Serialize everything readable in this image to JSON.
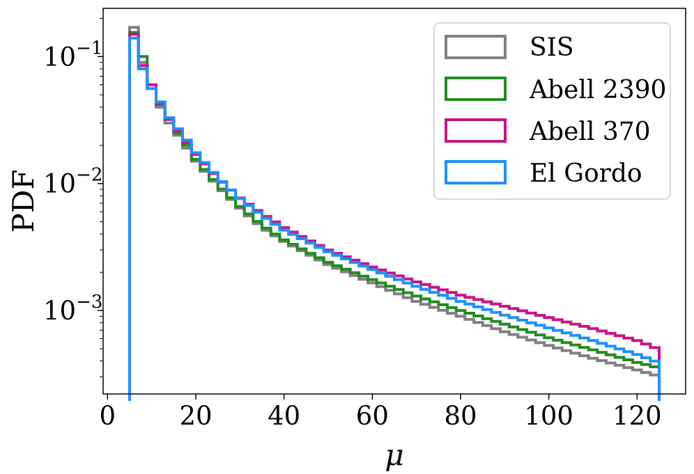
{
  "chart_data": {
    "type": "line",
    "subtype": "step-histogram",
    "title": "",
    "xlabel": "μ",
    "ylabel": "PDF",
    "xscale": "linear",
    "yscale": "log",
    "xlim": [
      -1,
      131
    ],
    "ylim": [
      0.00022,
      0.24
    ],
    "legend_position": "top-right",
    "x_ticks": [
      {
        "value": 0,
        "label": "0"
      },
      {
        "value": 20,
        "label": "20"
      },
      {
        "value": 40,
        "label": "40"
      },
      {
        "value": 60,
        "label": "60"
      },
      {
        "value": 80,
        "label": "80"
      },
      {
        "value": 100,
        "label": "100"
      },
      {
        "value": 120,
        "label": "120"
      }
    ],
    "y_ticks": [
      {
        "value": 0.1,
        "base": "10",
        "exp": "−1"
      },
      {
        "value": 0.01,
        "base": "10",
        "exp": "−2"
      },
      {
        "value": 0.001,
        "base": "10",
        "exp": "−3"
      }
    ],
    "bin_start": 5,
    "bin_width": 2,
    "num_bins": 60,
    "x_end": 125,
    "series": [
      {
        "name": "SIS",
        "color": "#808080",
        "anchors": [
          [
            6,
            0.17
          ],
          [
            8,
            0.09
          ],
          [
            10,
            0.056
          ],
          [
            12,
            0.04
          ],
          [
            14,
            0.03
          ],
          [
            16,
            0.024
          ],
          [
            18,
            0.019
          ],
          [
            20,
            0.015
          ],
          [
            25,
            0.0095
          ],
          [
            30,
            0.0064
          ],
          [
            35,
            0.0045
          ],
          [
            40,
            0.0035
          ],
          [
            50,
            0.0023
          ],
          [
            60,
            0.00165
          ],
          [
            70,
            0.00118
          ],
          [
            80,
            0.0009
          ],
          [
            90,
            0.00068
          ],
          [
            100,
            0.00053
          ],
          [
            110,
            0.00042
          ],
          [
            120,
            0.00034
          ],
          [
            124,
            0.00031
          ]
        ]
      },
      {
        "name": "Abell 2390",
        "color": "#228B22",
        "anchors": [
          [
            6,
            0.155
          ],
          [
            8,
            0.1
          ],
          [
            10,
            0.06
          ],
          [
            12,
            0.042
          ],
          [
            14,
            0.032
          ],
          [
            16,
            0.025
          ],
          [
            18,
            0.02
          ],
          [
            20,
            0.0155
          ],
          [
            25,
            0.0098
          ],
          [
            30,
            0.0066
          ],
          [
            35,
            0.0047
          ],
          [
            40,
            0.0036
          ],
          [
            50,
            0.0024
          ],
          [
            60,
            0.00175
          ],
          [
            70,
            0.0013
          ],
          [
            80,
            0.001
          ],
          [
            90,
            0.00078
          ],
          [
            100,
            0.00061
          ],
          [
            110,
            0.00049
          ],
          [
            120,
            0.00039
          ],
          [
            124,
            0.00036
          ]
        ]
      },
      {
        "name": "Abell 370",
        "color": "#C71585",
        "anchors": [
          [
            6,
            0.15
          ],
          [
            8,
            0.085
          ],
          [
            10,
            0.06
          ],
          [
            12,
            0.043
          ],
          [
            14,
            0.032
          ],
          [
            16,
            0.026
          ],
          [
            18,
            0.021
          ],
          [
            20,
            0.017
          ],
          [
            25,
            0.011
          ],
          [
            30,
            0.0077
          ],
          [
            35,
            0.0058
          ],
          [
            40,
            0.0045
          ],
          [
            50,
            0.003
          ],
          [
            60,
            0.0022
          ],
          [
            70,
            0.00168
          ],
          [
            80,
            0.00132
          ],
          [
            90,
            0.00108
          ],
          [
            100,
            0.00088
          ],
          [
            110,
            0.00072
          ],
          [
            120,
            0.00058
          ],
          [
            124,
            0.00051
          ]
        ]
      },
      {
        "name": "El Gordo",
        "color": "#1E90FF",
        "anchors": [
          [
            6,
            0.14
          ],
          [
            8,
            0.08
          ],
          [
            10,
            0.056
          ],
          [
            12,
            0.044
          ],
          [
            14,
            0.033
          ],
          [
            16,
            0.027
          ],
          [
            18,
            0.022
          ],
          [
            20,
            0.0175
          ],
          [
            25,
            0.0112
          ],
          [
            30,
            0.0076
          ],
          [
            35,
            0.0056
          ],
          [
            40,
            0.0043
          ],
          [
            50,
            0.0029
          ],
          [
            60,
            0.0021
          ],
          [
            70,
            0.00155
          ],
          [
            80,
            0.00118
          ],
          [
            90,
            0.00092
          ],
          [
            100,
            0.00073
          ],
          [
            110,
            0.00058
          ],
          [
            120,
            0.00045
          ],
          [
            124,
            0.0004
          ]
        ]
      }
    ]
  },
  "colors": {
    "SIS": "#808080",
    "Abell 2390": "#228B22",
    "Abell 370": "#C71585",
    "El Gordo": "#1E90FF"
  }
}
